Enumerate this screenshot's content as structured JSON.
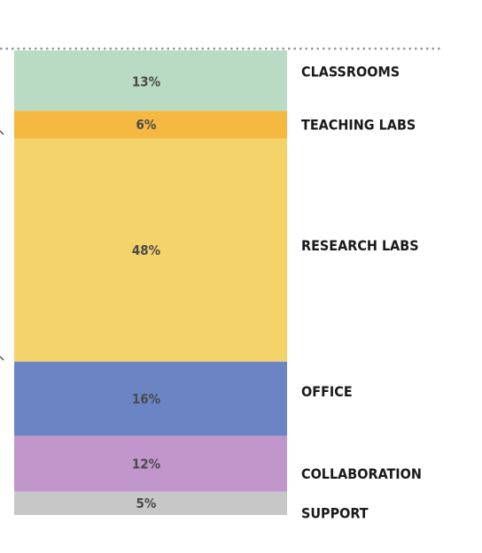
{
  "chart_data": {
    "type": "bar",
    "stacked": true,
    "orientation": "vertical",
    "categories": [
      "CLASSROOMS",
      "TEACHING LABS",
      "RESEARCH LABS",
      "OFFICE",
      "COLLABORATION",
      "SUPPORT"
    ],
    "values": [
      13,
      6,
      48,
      16,
      12,
      5
    ],
    "value_labels": [
      "13%",
      "6%",
      "48%",
      "16%",
      "12%",
      "5%"
    ],
    "unit": "%",
    "colors": [
      "#b9dac3",
      "#f5b942",
      "#f5d36b",
      "#6b84c3",
      "#c096cb",
      "#c7c7c7"
    ],
    "top_reference_line": "dotted",
    "grid": false,
    "legend": "none"
  }
}
